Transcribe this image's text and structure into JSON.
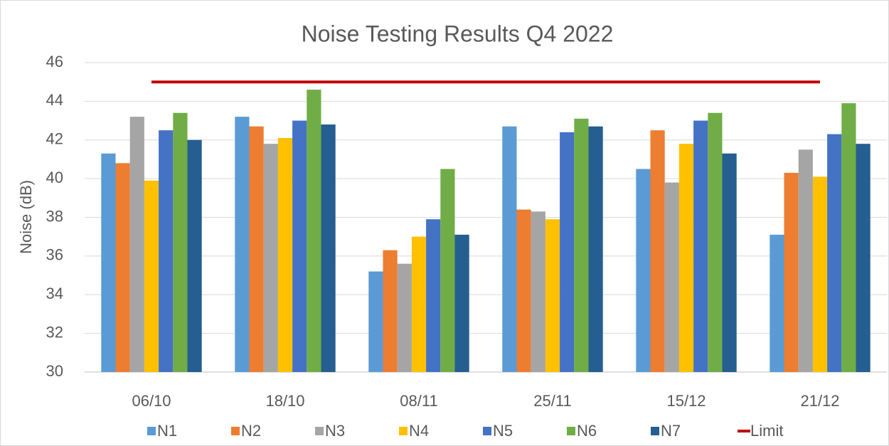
{
  "chart_data": {
    "type": "bar",
    "title": "Noise Testing Results Q4 2022",
    "y_label": "Noise (dB)",
    "categories": [
      "06/10",
      "18/10",
      "08/11",
      "25/11",
      "15/12",
      "21/12"
    ],
    "series": [
      {
        "name": "N1",
        "color": "#5b9bd5",
        "values": [
          41.3,
          43.2,
          35.2,
          42.7,
          40.5,
          37.1
        ]
      },
      {
        "name": "N2",
        "color": "#ed7d31",
        "values": [
          40.8,
          42.7,
          36.3,
          38.4,
          42.5,
          40.3
        ]
      },
      {
        "name": "N3",
        "color": "#a5a5a5",
        "values": [
          43.2,
          41.8,
          35.6,
          38.3,
          39.8,
          41.5
        ]
      },
      {
        "name": "N4",
        "color": "#ffc000",
        "values": [
          39.9,
          42.1,
          37.0,
          37.9,
          41.8,
          40.1
        ]
      },
      {
        "name": "N5",
        "color": "#4472c4",
        "values": [
          42.5,
          43.0,
          37.9,
          42.4,
          43.0,
          42.3
        ]
      },
      {
        "name": "N6",
        "color": "#70ad47",
        "values": [
          43.4,
          44.6,
          40.5,
          43.1,
          43.4,
          43.9
        ]
      },
      {
        "name": "N7",
        "color": "#255e91",
        "values": [
          42.0,
          42.8,
          37.1,
          42.7,
          41.3,
          41.8
        ]
      },
      {
        "name": "Limit",
        "type": "line",
        "color": "#c00000",
        "values": [
          45,
          45,
          45,
          45,
          45,
          45
        ]
      }
    ],
    "ylim": [
      30,
      46
    ],
    "yticks": [
      30,
      32,
      34,
      36,
      38,
      40,
      42,
      44,
      46
    ],
    "grid": true,
    "legend": "bottom"
  }
}
